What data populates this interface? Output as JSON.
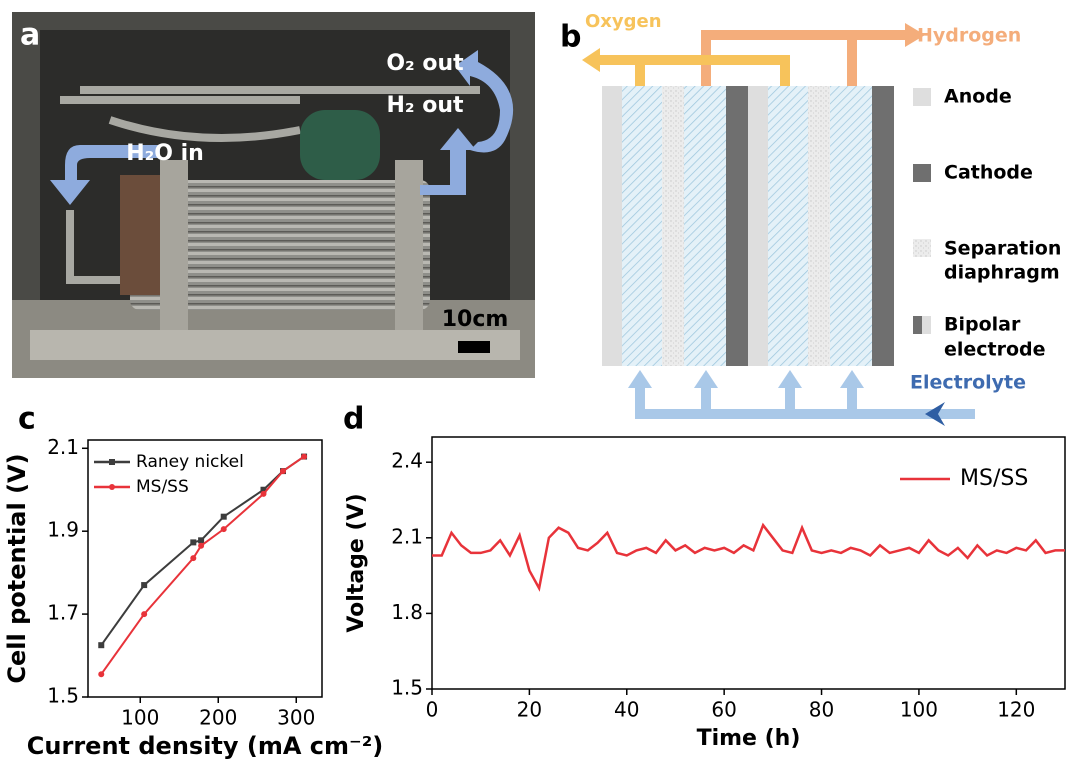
{
  "panel_a": {
    "label": "a",
    "annotations": [
      "O₂ out",
      "H₂ out",
      "H₂O in"
    ],
    "scale_bar": "10cm"
  },
  "panel_b": {
    "label": "b",
    "outlets": [
      "Oxygen",
      "Hydrogen"
    ],
    "inlet": "Electrolyte",
    "legend": [
      [
        "Anode"
      ],
      [
        "Cathode"
      ],
      [
        "Separation",
        "diaphragm"
      ],
      [
        "Bipolar",
        "electrode"
      ]
    ]
  },
  "chart_data": [
    {
      "type": "line",
      "panel_label": "c",
      "x_label": "Current density (mA cm⁻²)",
      "y_label": "Cell potential (V)",
      "x": [
        50,
        105,
        168,
        178,
        207,
        258,
        283,
        310
      ],
      "series": [
        {
          "name": "Raney nickel",
          "color": "#3d3d3d",
          "marker": "square",
          "values": [
            1.625,
            1.77,
            1.873,
            1.878,
            1.935,
            2.0,
            2.045,
            2.08
          ]
        },
        {
          "name": "MS/SS",
          "color": "#e8333a",
          "marker": "circle",
          "values": [
            1.555,
            1.7,
            1.835,
            1.865,
            1.905,
            1.99,
            2.045,
            2.08
          ]
        }
      ],
      "xlim": [
        33,
        333
      ],
      "ylim": [
        1.5,
        2.12
      ],
      "xticks": [
        100,
        200,
        300
      ],
      "yticks": [
        1.5,
        1.7,
        1.9,
        2.1
      ],
      "legend": "upper left"
    },
    {
      "type": "line",
      "panel_label": "d",
      "x_label": "Time (h)",
      "y_label": "Voltage (V)",
      "x": [
        0,
        2,
        4,
        6,
        8,
        10,
        12,
        14,
        16,
        18,
        20,
        22,
        24,
        26,
        28,
        30,
        32,
        34,
        36,
        38,
        40,
        42,
        44,
        46,
        48,
        50,
        52,
        54,
        56,
        58,
        60,
        62,
        64,
        66,
        68,
        70,
        72,
        74,
        76,
        78,
        80,
        82,
        84,
        86,
        88,
        90,
        92,
        94,
        96,
        98,
        100,
        102,
        104,
        106,
        108,
        110,
        112,
        114,
        116,
        118,
        120,
        122,
        124,
        126,
        128,
        130
      ],
      "series": [
        {
          "name": "MS/SS",
          "color": "#e8333a",
          "marker": "none",
          "values": [
            2.03,
            2.03,
            2.12,
            2.07,
            2.04,
            2.04,
            2.05,
            2.09,
            2.03,
            2.11,
            1.97,
            1.9,
            2.1,
            2.14,
            2.12,
            2.06,
            2.05,
            2.08,
            2.12,
            2.04,
            2.03,
            2.05,
            2.06,
            2.04,
            2.09,
            2.05,
            2.07,
            2.04,
            2.06,
            2.05,
            2.06,
            2.04,
            2.07,
            2.05,
            2.15,
            2.1,
            2.05,
            2.04,
            2.14,
            2.05,
            2.04,
            2.05,
            2.04,
            2.06,
            2.05,
            2.03,
            2.07,
            2.04,
            2.05,
            2.06,
            2.04,
            2.09,
            2.05,
            2.03,
            2.06,
            2.02,
            2.07,
            2.03,
            2.05,
            2.04,
            2.06,
            2.05,
            2.09,
            2.04,
            2.05,
            2.05
          ]
        }
      ],
      "xlim": [
        0,
        130
      ],
      "ylim": [
        1.5,
        2.5
      ],
      "xticks": [
        0,
        20,
        40,
        60,
        80,
        100,
        120
      ],
      "yticks": [
        1.5,
        1.8,
        2.1,
        2.4
      ],
      "legend": "upper right"
    }
  ]
}
